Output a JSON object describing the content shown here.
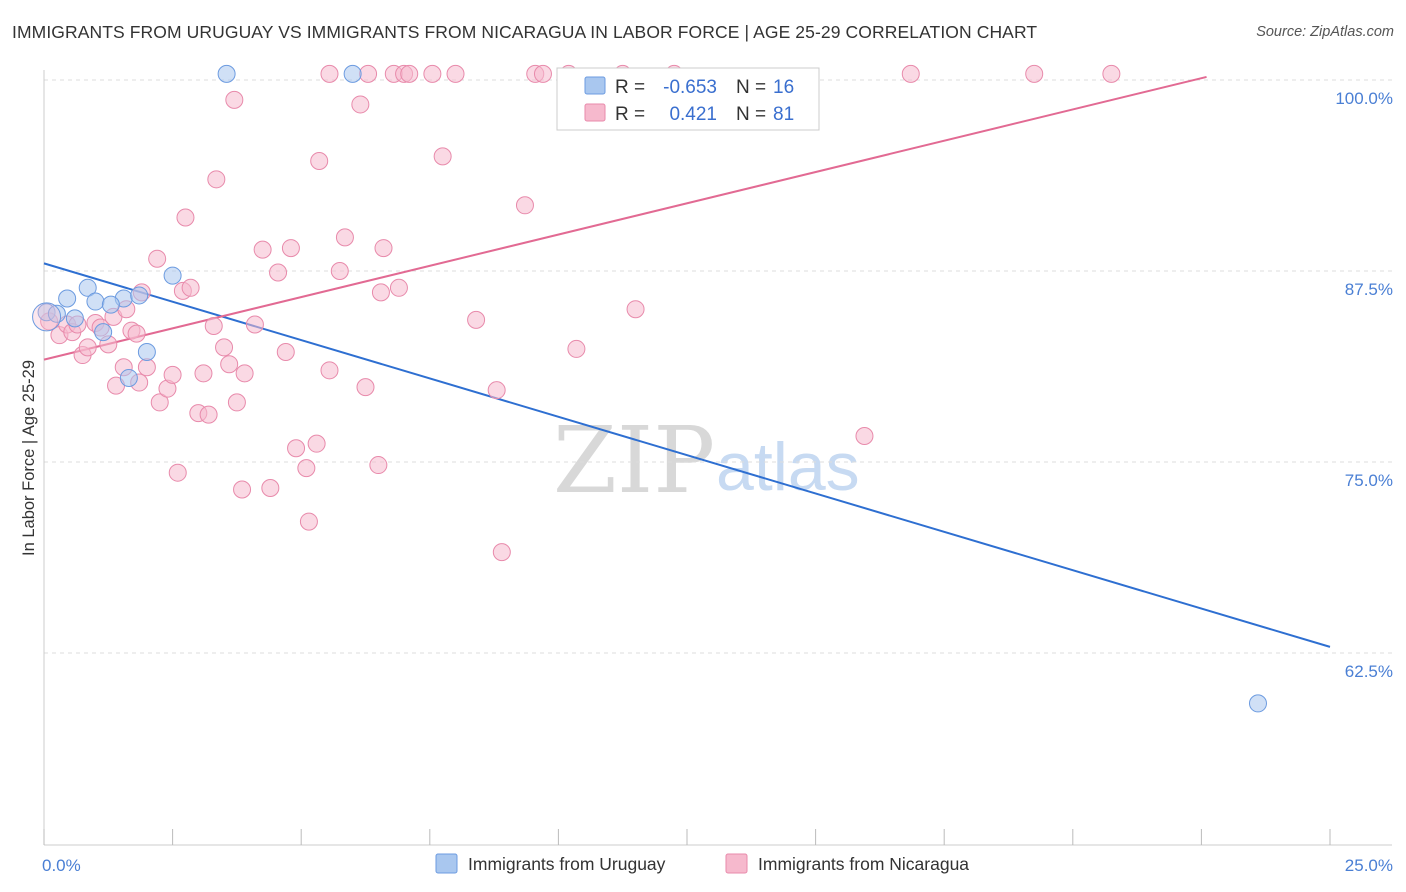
{
  "header": {
    "title": "IMMIGRANTS FROM URUGUAY VS IMMIGRANTS FROM NICARAGUA IN LABOR FORCE | AGE 25-29 CORRELATION CHART",
    "source": "Source: ZipAtlas.com"
  },
  "watermark": {
    "zip": "ZIP",
    "atlas": "atlas"
  },
  "colors": {
    "uruguay_fill": "#a9c7ef",
    "uruguay_stroke": "#6c9be0",
    "uruguay_line": "#2e6fd1",
    "nicaragua_fill": "#f6b9cd",
    "nicaragua_stroke": "#e88aab",
    "nicaragua_line": "#e26a93",
    "axis_text": "#4a7fd4",
    "grid": "#dddddd"
  },
  "chart_data": {
    "type": "scatter",
    "title": "IMMIGRANTS FROM URUGUAY VS IMMIGRANTS FROM NICARAGUA IN LABOR FORCE | AGE 25-29 CORRELATION CHART",
    "xlabel": "",
    "ylabel": "In Labor Force | Age 25-29",
    "xlim": [
      0,
      25
    ],
    "ylim": [
      50,
      100
    ],
    "x_tick_labels": [
      {
        "value": 0,
        "label": "0.0%"
      },
      {
        "value": 25,
        "label": "25.0%"
      }
    ],
    "y_ticks": [
      {
        "value": 62.5,
        "label": "62.5%"
      },
      {
        "value": 75,
        "label": "75.0%"
      },
      {
        "value": 87.5,
        "label": "87.5%"
      },
      {
        "value": 100,
        "label": "100.0%"
      }
    ],
    "legend": {
      "placement": "top-center",
      "rows": [
        {
          "r_label": "R =",
          "r_value": "-0.653",
          "n_label": "N =",
          "n_value": "16"
        },
        {
          "r_label": "R =",
          "r_value": "0.421",
          "n_label": "N =",
          "n_value": "81"
        }
      ]
    },
    "series": [
      {
        "name": "Immigrants from Uruguay",
        "color": "#a9c7ef",
        "trend": {
          "x0": 0,
          "y0": 88.0,
          "x1": 25,
          "y1": 62.9
        },
        "points": [
          [
            0.05,
            84.8
          ],
          [
            0.25,
            84.7
          ],
          [
            0.45,
            85.7
          ],
          [
            0.6,
            84.4
          ],
          [
            0.85,
            86.4
          ],
          [
            1.0,
            85.5
          ],
          [
            1.15,
            83.5
          ],
          [
            1.55,
            85.7
          ],
          [
            1.85,
            85.9
          ],
          [
            2.0,
            82.2
          ],
          [
            1.65,
            80.5
          ],
          [
            2.5,
            87.2
          ],
          [
            3.55,
            100.4
          ],
          [
            6.0,
            100.4
          ],
          [
            23.6,
            59.2
          ],
          [
            1.3,
            85.3
          ]
        ]
      },
      {
        "name": "Immigrants from Nicaragua",
        "color": "#f6b9cd",
        "trend": {
          "x0": 0,
          "y0": 81.7,
          "x1": 22.6,
          "y1": 100.2
        },
        "points": [
          [
            0.1,
            84.2
          ],
          [
            0.3,
            83.3
          ],
          [
            0.45,
            84.0
          ],
          [
            0.55,
            83.5
          ],
          [
            0.65,
            84.0
          ],
          [
            0.75,
            82.0
          ],
          [
            0.85,
            82.5
          ],
          [
            1.0,
            84.1
          ],
          [
            1.1,
            83.8
          ],
          [
            1.25,
            82.7
          ],
          [
            1.35,
            84.5
          ],
          [
            1.4,
            80.0
          ],
          [
            1.55,
            81.2
          ],
          [
            1.6,
            85.0
          ],
          [
            1.7,
            83.6
          ],
          [
            1.8,
            83.4
          ],
          [
            1.85,
            80.2
          ],
          [
            1.9,
            86.1
          ],
          [
            2.0,
            81.2
          ],
          [
            2.2,
            88.3
          ],
          [
            2.25,
            78.9
          ],
          [
            2.4,
            79.8
          ],
          [
            2.5,
            80.7
          ],
          [
            2.6,
            74.3
          ],
          [
            2.7,
            86.2
          ],
          [
            2.75,
            91.0
          ],
          [
            2.85,
            86.4
          ],
          [
            3.0,
            78.2
          ],
          [
            3.1,
            80.8
          ],
          [
            3.2,
            78.1
          ],
          [
            3.3,
            83.9
          ],
          [
            3.35,
            93.5
          ],
          [
            3.5,
            82.5
          ],
          [
            3.6,
            81.4
          ],
          [
            3.7,
            98.7
          ],
          [
            3.75,
            78.9
          ],
          [
            3.85,
            73.2
          ],
          [
            3.9,
            80.8
          ],
          [
            4.1,
            84.0
          ],
          [
            4.25,
            88.9
          ],
          [
            4.4,
            73.3
          ],
          [
            4.55,
            87.4
          ],
          [
            4.7,
            82.2
          ],
          [
            4.8,
            89.0
          ],
          [
            4.9,
            75.9
          ],
          [
            5.1,
            74.6
          ],
          [
            5.15,
            71.1
          ],
          [
            5.3,
            76.2
          ],
          [
            5.35,
            94.7
          ],
          [
            5.55,
            81.0
          ],
          [
            5.55,
            100.4
          ],
          [
            5.75,
            87.5
          ],
          [
            5.85,
            89.7
          ],
          [
            6.15,
            98.4
          ],
          [
            6.25,
            79.9
          ],
          [
            6.3,
            100.4
          ],
          [
            6.5,
            74.8
          ],
          [
            6.55,
            86.1
          ],
          [
            6.6,
            89.0
          ],
          [
            6.8,
            100.4
          ],
          [
            6.9,
            86.4
          ],
          [
            7.0,
            100.4
          ],
          [
            7.1,
            100.4
          ],
          [
            7.55,
            100.4
          ],
          [
            7.75,
            95.0
          ],
          [
            8.0,
            100.4
          ],
          [
            8.4,
            84.3
          ],
          [
            8.8,
            79.7
          ],
          [
            8.9,
            69.1
          ],
          [
            9.35,
            91.8
          ],
          [
            9.55,
            100.4
          ],
          [
            9.7,
            100.4
          ],
          [
            10.2,
            100.4
          ],
          [
            10.35,
            82.4
          ],
          [
            11.25,
            100.4
          ],
          [
            11.5,
            85.0
          ],
          [
            12.25,
            100.4
          ],
          [
            15.95,
            76.7
          ],
          [
            16.85,
            100.4
          ],
          [
            19.25,
            100.4
          ],
          [
            20.75,
            100.4
          ]
        ]
      }
    ]
  },
  "bottom_legend": {
    "items": [
      {
        "label": "Immigrants from Uruguay"
      },
      {
        "label": "Immigrants from Nicaragua"
      }
    ]
  }
}
